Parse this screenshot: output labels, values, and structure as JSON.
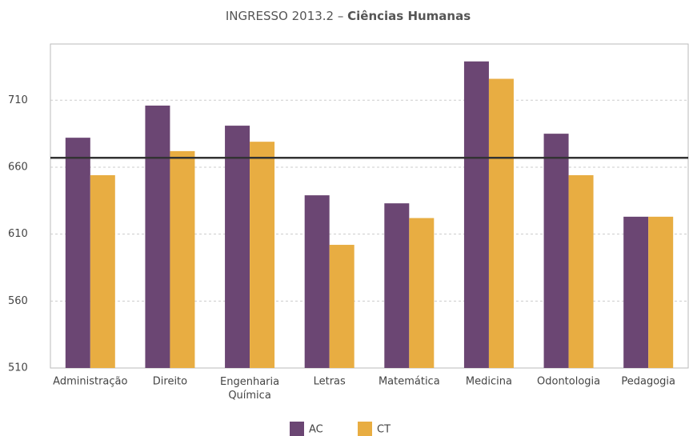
{
  "chart_data": {
    "type": "bar",
    "title_parts": [
      "INGRESSO 2013.2 – ",
      "Ciências Humanas"
    ],
    "categories": [
      "Administração",
      "Direito",
      "Engenharia Química",
      "Letras",
      "Matemática",
      "Medicina",
      "Odontologia",
      "Pedagogia"
    ],
    "series": [
      {
        "name": "AC",
        "color": "#6b4673",
        "values": [
          682,
          706,
          691,
          639,
          633,
          739,
          685,
          623
        ]
      },
      {
        "name": "CT",
        "color": "#e8ad42",
        "values": [
          654,
          672,
          679,
          602,
          622,
          726,
          654,
          623
        ]
      }
    ],
    "reference_line": 667,
    "ylim": [
      510,
      752
    ],
    "yticks": [
      510,
      560,
      610,
      660,
      710
    ],
    "grid": true,
    "legend": "bottom"
  }
}
